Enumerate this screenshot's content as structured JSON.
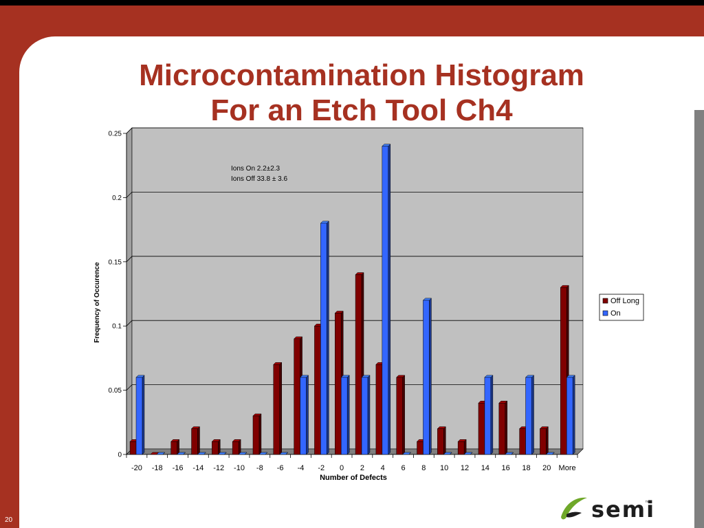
{
  "slide": {
    "title_line1": "Microcontamination Histogram",
    "title_line2": "For an Etch Tool Ch4",
    "page_number": "20",
    "logo_text": "semi",
    "logo_tm": "™"
  },
  "colors": {
    "frame": "#A63121",
    "title": "#A63121",
    "plot_bg": "#C0C0C0",
    "off_long": "#800000",
    "on": "#3366FF"
  },
  "chart_data": {
    "type": "bar",
    "title": "",
    "xlabel": "Number of Defects",
    "ylabel": "Frequency of Occurence",
    "ylim": [
      0,
      0.25
    ],
    "yticks": [
      "0",
      "0.05",
      "0.1",
      "0.15",
      "0.2",
      "0.25"
    ],
    "grid": true,
    "legend_position": "right",
    "annotation": [
      "Ions On 2.2±2.3",
      "Ions Off 33.8 ± 3.6"
    ],
    "categories": [
      "-20",
      "-18",
      "-16",
      "-14",
      "-12",
      "-10",
      "-8",
      "-6",
      "-4",
      "-2",
      "0",
      "2",
      "4",
      "6",
      "8",
      "10",
      "12",
      "14",
      "16",
      "18",
      "20",
      "More"
    ],
    "series": [
      {
        "name": "Off Long",
        "color": "#800000",
        "values": [
          0.01,
          0,
          0.01,
          0.02,
          0.01,
          0.01,
          0.03,
          0.07,
          0.09,
          0.1,
          0.11,
          0.14,
          0.07,
          0.06,
          0.01,
          0.02,
          0.01,
          0.04,
          0.04,
          0.02,
          0.02,
          0.13
        ]
      },
      {
        "name": "On",
        "color": "#3366FF",
        "values": [
          0.06,
          0,
          0,
          0,
          0,
          0,
          0,
          0,
          0.06,
          0.18,
          0.06,
          0.06,
          0.24,
          0,
          0.12,
          0,
          0,
          0.06,
          0,
          0.06,
          0,
          0.06
        ]
      }
    ]
  }
}
